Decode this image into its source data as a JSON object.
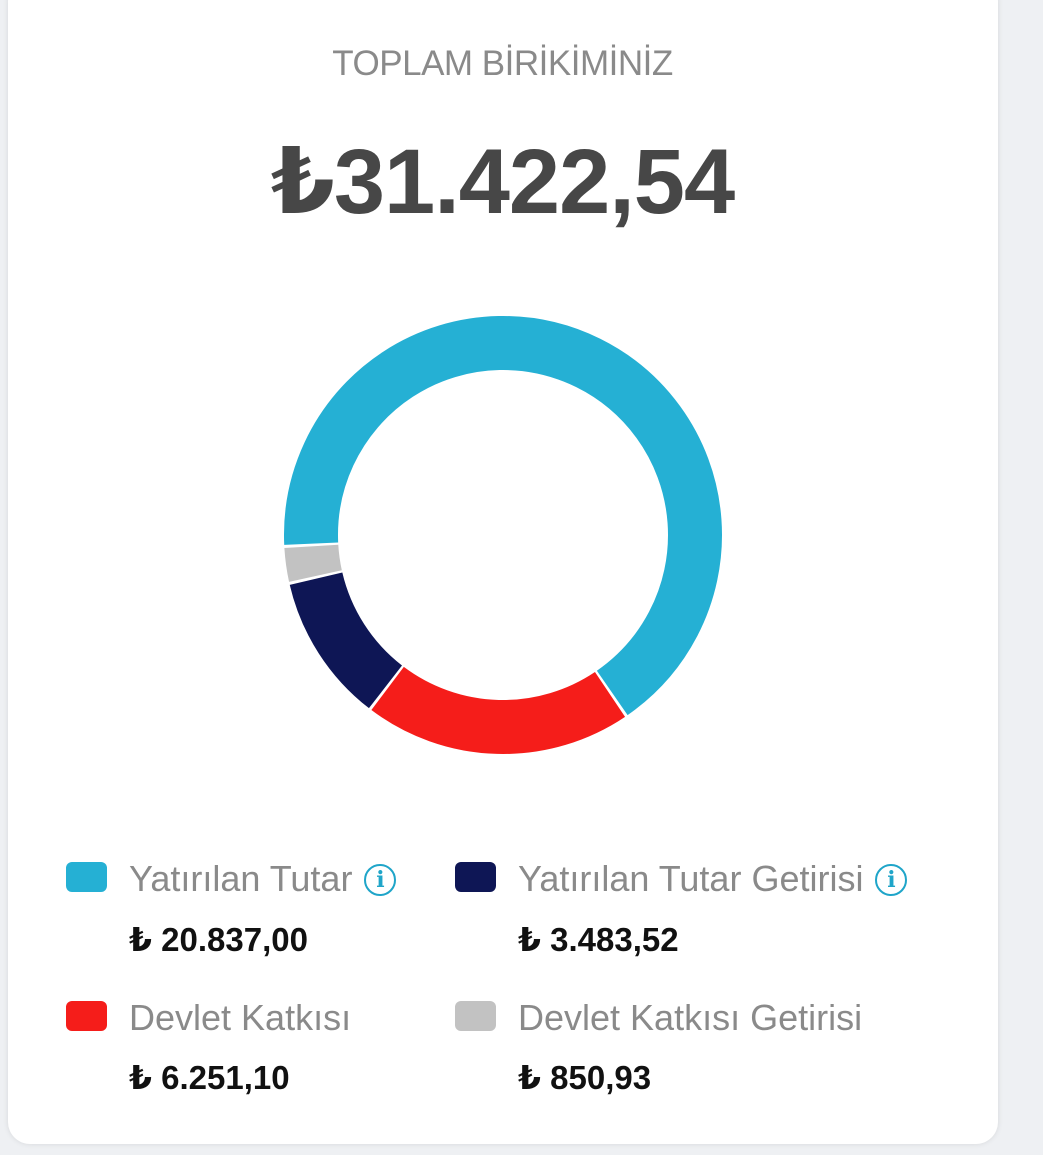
{
  "header": {
    "title": "TOPLAM BİRİKİMİNİZ",
    "total": "₺31.422,54"
  },
  "legend": [
    {
      "label": "Yatırılan Tutar",
      "value": "₺ 20.837,00",
      "color": "#25b0d4",
      "icon": "info-icon"
    },
    {
      "label": "Yatırılan Tutar Getirisi",
      "value": "₺ 3.483,52",
      "color": "#0e1655",
      "icon": "info-icon"
    },
    {
      "label": "Devlet Katkısı",
      "value": "₺ 6.251,10",
      "color": "#f51d1a",
      "icon": null
    },
    {
      "label": "Devlet Katkısı Getirisi",
      "value": "₺ 850,93",
      "color": "#c2c2c2",
      "icon": null
    }
  ],
  "chart_data": {
    "type": "pie",
    "variant": "donut",
    "total": 31422.54,
    "slices": [
      {
        "label": "Yatırılan Tutar",
        "value": 20837.0,
        "color": "#25b0d4"
      },
      {
        "label": "Devlet Katkısı",
        "value": 6251.1,
        "color": "#f51d1a"
      },
      {
        "label": "Yatırılan Tutar Getirisi",
        "value": 3483.52,
        "color": "#0e1655"
      },
      {
        "label": "Devlet Katkısı Getirisi",
        "value": 850.93,
        "color": "#c2c2c2"
      }
    ]
  }
}
